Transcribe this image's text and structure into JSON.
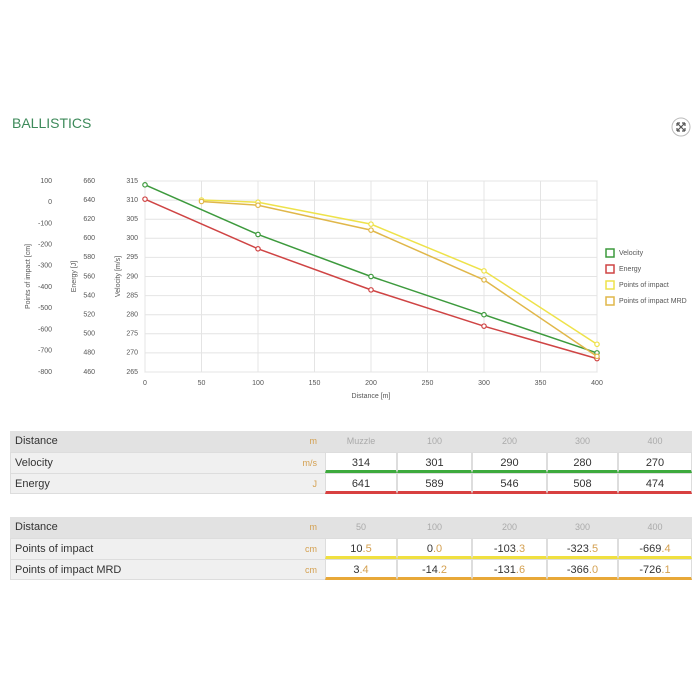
{
  "header": {
    "title": "BALLISTICS"
  },
  "chart_data": {
    "type": "line",
    "xlabel": "Distance [m]",
    "ylabel": "Velocity [m/s]",
    "y2label": "Energy [J]",
    "y3label": "Points of impact [cm]",
    "xlim": [
      0,
      400
    ],
    "xticks": [
      0,
      50,
      100,
      150,
      200,
      250,
      300,
      350,
      400
    ],
    "ylim": [
      265,
      315
    ],
    "yticks": [
      265,
      270,
      275,
      280,
      285,
      290,
      295,
      300,
      305,
      310,
      315
    ],
    "y2lim": [
      460,
      660
    ],
    "y2ticks": [
      460,
      480,
      500,
      520,
      540,
      560,
      580,
      600,
      620,
      640,
      660
    ],
    "y3lim": [
      -800,
      100
    ],
    "y3ticks": [
      -800,
      -700,
      -600,
      -500,
      -400,
      -300,
      -200,
      -100,
      0,
      100
    ],
    "grid": true,
    "legend": "right",
    "series": [
      {
        "name": "Velocity",
        "color": "#3d9a3d",
        "axis": "y",
        "x": [
          0,
          100,
          200,
          300,
          400
        ],
        "values": [
          314,
          301,
          290,
          280,
          270
        ]
      },
      {
        "name": "Energy",
        "color": "#cf4444",
        "axis": "y2",
        "x": [
          0,
          100,
          200,
          300,
          400
        ],
        "values": [
          641,
          589,
          546,
          508,
          474
        ]
      },
      {
        "name": "Points of impact",
        "color": "#eee24a",
        "axis": "y3",
        "x": [
          50,
          100,
          200,
          300,
          400
        ],
        "values": [
          10.5,
          0.0,
          -103.3,
          -323.5,
          -669.4
        ]
      },
      {
        "name": "Points of impact MRD",
        "color": "#e0b74a",
        "axis": "y3",
        "x": [
          50,
          100,
          200,
          300,
          400
        ],
        "values": [
          3.4,
          -14.2,
          -131.6,
          -366.0,
          -726.1
        ]
      }
    ]
  },
  "tables": [
    {
      "header": [
        "Distance",
        "m",
        "Muzzle",
        "100",
        "200",
        "300",
        "400"
      ],
      "rows": [
        {
          "label": "Velocity",
          "unit": "m/s",
          "color": "#3daa3d",
          "values": [
            "314",
            "301",
            "290",
            "280",
            "270"
          ]
        },
        {
          "label": "Energy",
          "unit": "J",
          "color": "#d84040",
          "values": [
            "641",
            "589",
            "546",
            "508",
            "474"
          ]
        }
      ]
    },
    {
      "header": [
        "Distance",
        "m",
        "50",
        "100",
        "200",
        "300",
        "400"
      ],
      "rows": [
        {
          "label": "Points of impact",
          "unit": "cm",
          "color": "#f0e040",
          "values": [
            "10.5",
            "0.0",
            "-103.3",
            "-323.5",
            "-669.4"
          ]
        },
        {
          "label": "Points of impact MRD",
          "unit": "cm",
          "color": "#e8a838",
          "values": [
            "3.4",
            "-14.2",
            "-131.6",
            "-366.0",
            "-726.1"
          ]
        }
      ]
    }
  ]
}
